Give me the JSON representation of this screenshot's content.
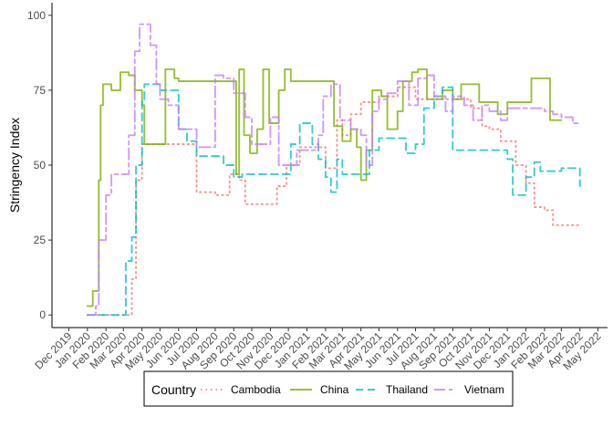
{
  "chart_data": {
    "type": "line",
    "title": "",
    "xlabel": "",
    "ylabel": "Stringency Index",
    "ylim": [
      0,
      100
    ],
    "yticks": [
      0,
      25,
      50,
      75,
      100
    ],
    "xlim": [
      "2019-12-01",
      "2022-05-01"
    ],
    "xticks": [
      "2019-12-01",
      "2020-01-01",
      "2020-02-01",
      "2020-03-01",
      "2020-04-01",
      "2020-05-01",
      "2020-06-01",
      "2020-07-01",
      "2020-08-01",
      "2020-09-01",
      "2020-10-01",
      "2020-11-01",
      "2020-12-01",
      "2021-01-01",
      "2021-02-01",
      "2021-03-01",
      "2021-04-01",
      "2021-05-01",
      "2021-06-01",
      "2021-07-01",
      "2021-08-01",
      "2021-09-01",
      "2021-10-01",
      "2021-11-01",
      "2021-12-01",
      "2022-01-01",
      "2022-02-01",
      "2022-03-01",
      "2022-04-01",
      "2022-05-01"
    ],
    "xtick_labels": [
      "Dec 2019",
      "Jan 2020",
      "Feb 2020",
      "Mar 2020",
      "Apr 2020",
      "May 2020",
      "Jun 2020",
      "Jul 2020",
      "Aug 2020",
      "Sep 2020",
      "Oct 2020",
      "Nov 2020",
      "Dec 2020",
      "Jan 2021",
      "Feb 2021",
      "Mar 2021",
      "Apr 2021",
      "May 2021",
      "Jun 2021",
      "Jul 2021",
      "Aug 2021",
      "Sep 2021",
      "Oct 2021",
      "Nov 2021",
      "Dec 2021",
      "Jan 2022",
      "Feb 2022",
      "Mar 2022",
      "Apr 2022",
      "May 2022"
    ],
    "grid": false,
    "legend": {
      "title": "Country",
      "position": "bottom"
    },
    "series": [
      {
        "name": "Cambodia",
        "color": "#F8766D",
        "dash": "dotted",
        "points": [
          [
            "2020-01-01",
            0
          ],
          [
            "2020-02-01",
            0
          ],
          [
            "2020-03-01",
            0
          ],
          [
            "2020-03-15",
            12
          ],
          [
            "2020-03-22",
            45
          ],
          [
            "2020-04-01",
            57
          ],
          [
            "2020-05-01",
            57
          ],
          [
            "2020-06-01",
            57
          ],
          [
            "2020-07-01",
            41
          ],
          [
            "2020-08-01",
            40
          ],
          [
            "2020-08-25",
            47
          ],
          [
            "2020-09-10",
            45
          ],
          [
            "2020-09-20",
            37
          ],
          [
            "2020-11-01",
            37
          ],
          [
            "2020-11-12",
            43
          ],
          [
            "2020-11-28",
            50
          ],
          [
            "2020-12-05",
            50
          ],
          [
            "2020-12-20",
            56
          ],
          [
            "2021-01-01",
            56
          ],
          [
            "2021-02-01",
            49
          ],
          [
            "2021-02-20",
            65
          ],
          [
            "2021-03-01",
            60
          ],
          [
            "2021-03-15",
            67
          ],
          [
            "2021-04-01",
            71
          ],
          [
            "2021-05-01",
            73
          ],
          [
            "2021-06-01",
            76
          ],
          [
            "2021-07-01",
            72
          ],
          [
            "2021-08-01",
            72
          ],
          [
            "2021-09-01",
            72
          ],
          [
            "2021-10-01",
            69
          ],
          [
            "2021-10-20",
            63
          ],
          [
            "2021-11-01",
            62
          ],
          [
            "2021-11-20",
            58
          ],
          [
            "2021-12-01",
            58
          ],
          [
            "2021-12-15",
            50
          ],
          [
            "2022-01-01",
            44
          ],
          [
            "2022-01-15",
            36
          ],
          [
            "2022-02-01",
            35
          ],
          [
            "2022-02-15",
            30
          ],
          [
            "2022-03-01",
            30
          ],
          [
            "2022-04-01",
            30
          ]
        ]
      },
      {
        "name": "China",
        "color": "#7CAE00",
        "dash": "solid",
        "points": [
          [
            "2020-01-01",
            3
          ],
          [
            "2020-01-10",
            8
          ],
          [
            "2020-01-20",
            45
          ],
          [
            "2020-01-23",
            70
          ],
          [
            "2020-01-27",
            77
          ],
          [
            "2020-02-10",
            75
          ],
          [
            "2020-02-25",
            81
          ],
          [
            "2020-03-10",
            80
          ],
          [
            "2020-03-20",
            75
          ],
          [
            "2020-04-01",
            70
          ],
          [
            "2020-04-05",
            57
          ],
          [
            "2020-05-01",
            57
          ],
          [
            "2020-05-10",
            82
          ],
          [
            "2020-05-25",
            79
          ],
          [
            "2020-06-01",
            78
          ],
          [
            "2020-07-01",
            78
          ],
          [
            "2020-08-01",
            78
          ],
          [
            "2020-08-30",
            78
          ],
          [
            "2020-09-05",
            47
          ],
          [
            "2020-09-10",
            82
          ],
          [
            "2020-09-18",
            60
          ],
          [
            "2020-09-28",
            54
          ],
          [
            "2020-10-10",
            62
          ],
          [
            "2020-10-20",
            82
          ],
          [
            "2020-10-30",
            64
          ],
          [
            "2020-11-15",
            75
          ],
          [
            "2020-11-25",
            82
          ],
          [
            "2020-12-05",
            78
          ],
          [
            "2021-01-01",
            78
          ],
          [
            "2021-01-20",
            78
          ],
          [
            "2021-02-01",
            78
          ],
          [
            "2021-02-15",
            63
          ],
          [
            "2021-03-01",
            58
          ],
          [
            "2021-03-15",
            62
          ],
          [
            "2021-03-25",
            56
          ],
          [
            "2021-04-01",
            45
          ],
          [
            "2021-04-10",
            55
          ],
          [
            "2021-04-20",
            75
          ],
          [
            "2021-05-05",
            73
          ],
          [
            "2021-05-15",
            62
          ],
          [
            "2021-06-01",
            68
          ],
          [
            "2021-06-10",
            78
          ],
          [
            "2021-06-25",
            81
          ],
          [
            "2021-07-05",
            82
          ],
          [
            "2021-07-20",
            72
          ],
          [
            "2021-08-15",
            75
          ],
          [
            "2021-09-01",
            72
          ],
          [
            "2021-09-15",
            77
          ],
          [
            "2021-10-15",
            71
          ],
          [
            "2021-11-01",
            71
          ],
          [
            "2021-11-15",
            67
          ],
          [
            "2021-12-01",
            71
          ],
          [
            "2022-01-01",
            71
          ],
          [
            "2022-01-10",
            79
          ],
          [
            "2022-02-01",
            79
          ],
          [
            "2022-02-10",
            65
          ],
          [
            "2022-03-01",
            65
          ]
        ]
      },
      {
        "name": "Thailand",
        "color": "#00BFC4",
        "dash": "dashed",
        "points": [
          [
            "2020-01-01",
            0
          ],
          [
            "2020-02-01",
            0
          ],
          [
            "2020-03-01",
            0
          ],
          [
            "2020-03-05",
            18
          ],
          [
            "2020-03-15",
            26
          ],
          [
            "2020-03-22",
            50
          ],
          [
            "2020-04-01",
            72
          ],
          [
            "2020-04-05",
            77
          ],
          [
            "2020-05-01",
            75
          ],
          [
            "2020-06-01",
            62
          ],
          [
            "2020-06-15",
            58
          ],
          [
            "2020-07-01",
            53
          ],
          [
            "2020-08-01",
            53
          ],
          [
            "2020-08-15",
            50
          ],
          [
            "2020-09-01",
            46
          ],
          [
            "2020-09-15",
            47
          ],
          [
            "2020-10-01",
            47
          ],
          [
            "2020-11-01",
            47
          ],
          [
            "2020-11-20",
            47
          ],
          [
            "2020-12-05",
            57
          ],
          [
            "2020-12-20",
            64
          ],
          [
            "2021-01-01",
            64
          ],
          [
            "2021-01-10",
            57
          ],
          [
            "2021-01-20",
            52
          ],
          [
            "2021-02-01",
            46
          ],
          [
            "2021-02-10",
            41
          ],
          [
            "2021-02-20",
            52
          ],
          [
            "2021-03-01",
            47
          ],
          [
            "2021-04-01",
            47
          ],
          [
            "2021-04-15",
            55
          ],
          [
            "2021-05-01",
            59
          ],
          [
            "2021-06-01",
            59
          ],
          [
            "2021-06-15",
            54
          ],
          [
            "2021-07-01",
            57
          ],
          [
            "2021-07-15",
            69
          ],
          [
            "2021-08-01",
            73
          ],
          [
            "2021-08-15",
            76
          ],
          [
            "2021-09-01",
            55
          ],
          [
            "2021-10-01",
            55
          ],
          [
            "2021-11-01",
            55
          ],
          [
            "2021-12-01",
            52
          ],
          [
            "2021-12-10",
            40
          ],
          [
            "2022-01-01",
            46
          ],
          [
            "2022-01-15",
            51
          ],
          [
            "2022-01-25",
            48
          ],
          [
            "2022-02-01",
            48
          ],
          [
            "2022-03-01",
            49
          ],
          [
            "2022-04-01",
            43
          ]
        ]
      },
      {
        "name": "Vietnam",
        "color": "#C77CFF",
        "dash": "longdash",
        "points": [
          [
            "2020-01-01",
            0
          ],
          [
            "2020-01-15",
            3
          ],
          [
            "2020-01-20",
            25
          ],
          [
            "2020-02-01",
            40
          ],
          [
            "2020-02-10",
            47
          ],
          [
            "2020-03-01",
            47
          ],
          [
            "2020-03-10",
            60
          ],
          [
            "2020-03-20",
            88
          ],
          [
            "2020-03-28",
            97
          ],
          [
            "2020-04-15",
            90
          ],
          [
            "2020-04-25",
            77
          ],
          [
            "2020-05-01",
            72
          ],
          [
            "2020-05-15",
            70
          ],
          [
            "2020-06-01",
            62
          ],
          [
            "2020-07-01",
            56
          ],
          [
            "2020-07-20",
            56
          ],
          [
            "2020-08-01",
            80
          ],
          [
            "2020-08-15",
            79
          ],
          [
            "2020-09-01",
            74
          ],
          [
            "2020-09-20",
            66
          ],
          [
            "2020-10-01",
            57
          ],
          [
            "2020-11-01",
            66
          ],
          [
            "2020-11-15",
            50
          ],
          [
            "2020-12-01",
            50
          ],
          [
            "2020-12-15",
            55
          ],
          [
            "2021-01-01",
            55
          ],
          [
            "2021-01-20",
            60
          ],
          [
            "2021-01-28",
            73
          ],
          [
            "2021-02-10",
            77
          ],
          [
            "2021-02-25",
            65
          ],
          [
            "2021-03-15",
            62
          ],
          [
            "2021-04-01",
            60
          ],
          [
            "2021-04-10",
            50
          ],
          [
            "2021-04-20",
            68
          ],
          [
            "2021-05-01",
            72
          ],
          [
            "2021-05-15",
            74
          ],
          [
            "2021-06-01",
            78
          ],
          [
            "2021-06-20",
            70
          ],
          [
            "2021-07-05",
            79
          ],
          [
            "2021-07-20",
            80
          ],
          [
            "2021-08-01",
            73
          ],
          [
            "2021-08-20",
            68
          ],
          [
            "2021-09-01",
            73
          ],
          [
            "2021-09-20",
            70
          ],
          [
            "2021-10-05",
            65
          ],
          [
            "2021-10-20",
            70
          ],
          [
            "2021-11-01",
            68
          ],
          [
            "2021-11-20",
            65
          ],
          [
            "2021-12-01",
            69
          ],
          [
            "2022-01-01",
            69
          ],
          [
            "2022-02-01",
            68
          ],
          [
            "2022-02-15",
            67
          ],
          [
            "2022-03-01",
            66
          ],
          [
            "2022-03-20",
            64
          ],
          [
            "2022-04-01",
            64
          ]
        ]
      }
    ]
  }
}
